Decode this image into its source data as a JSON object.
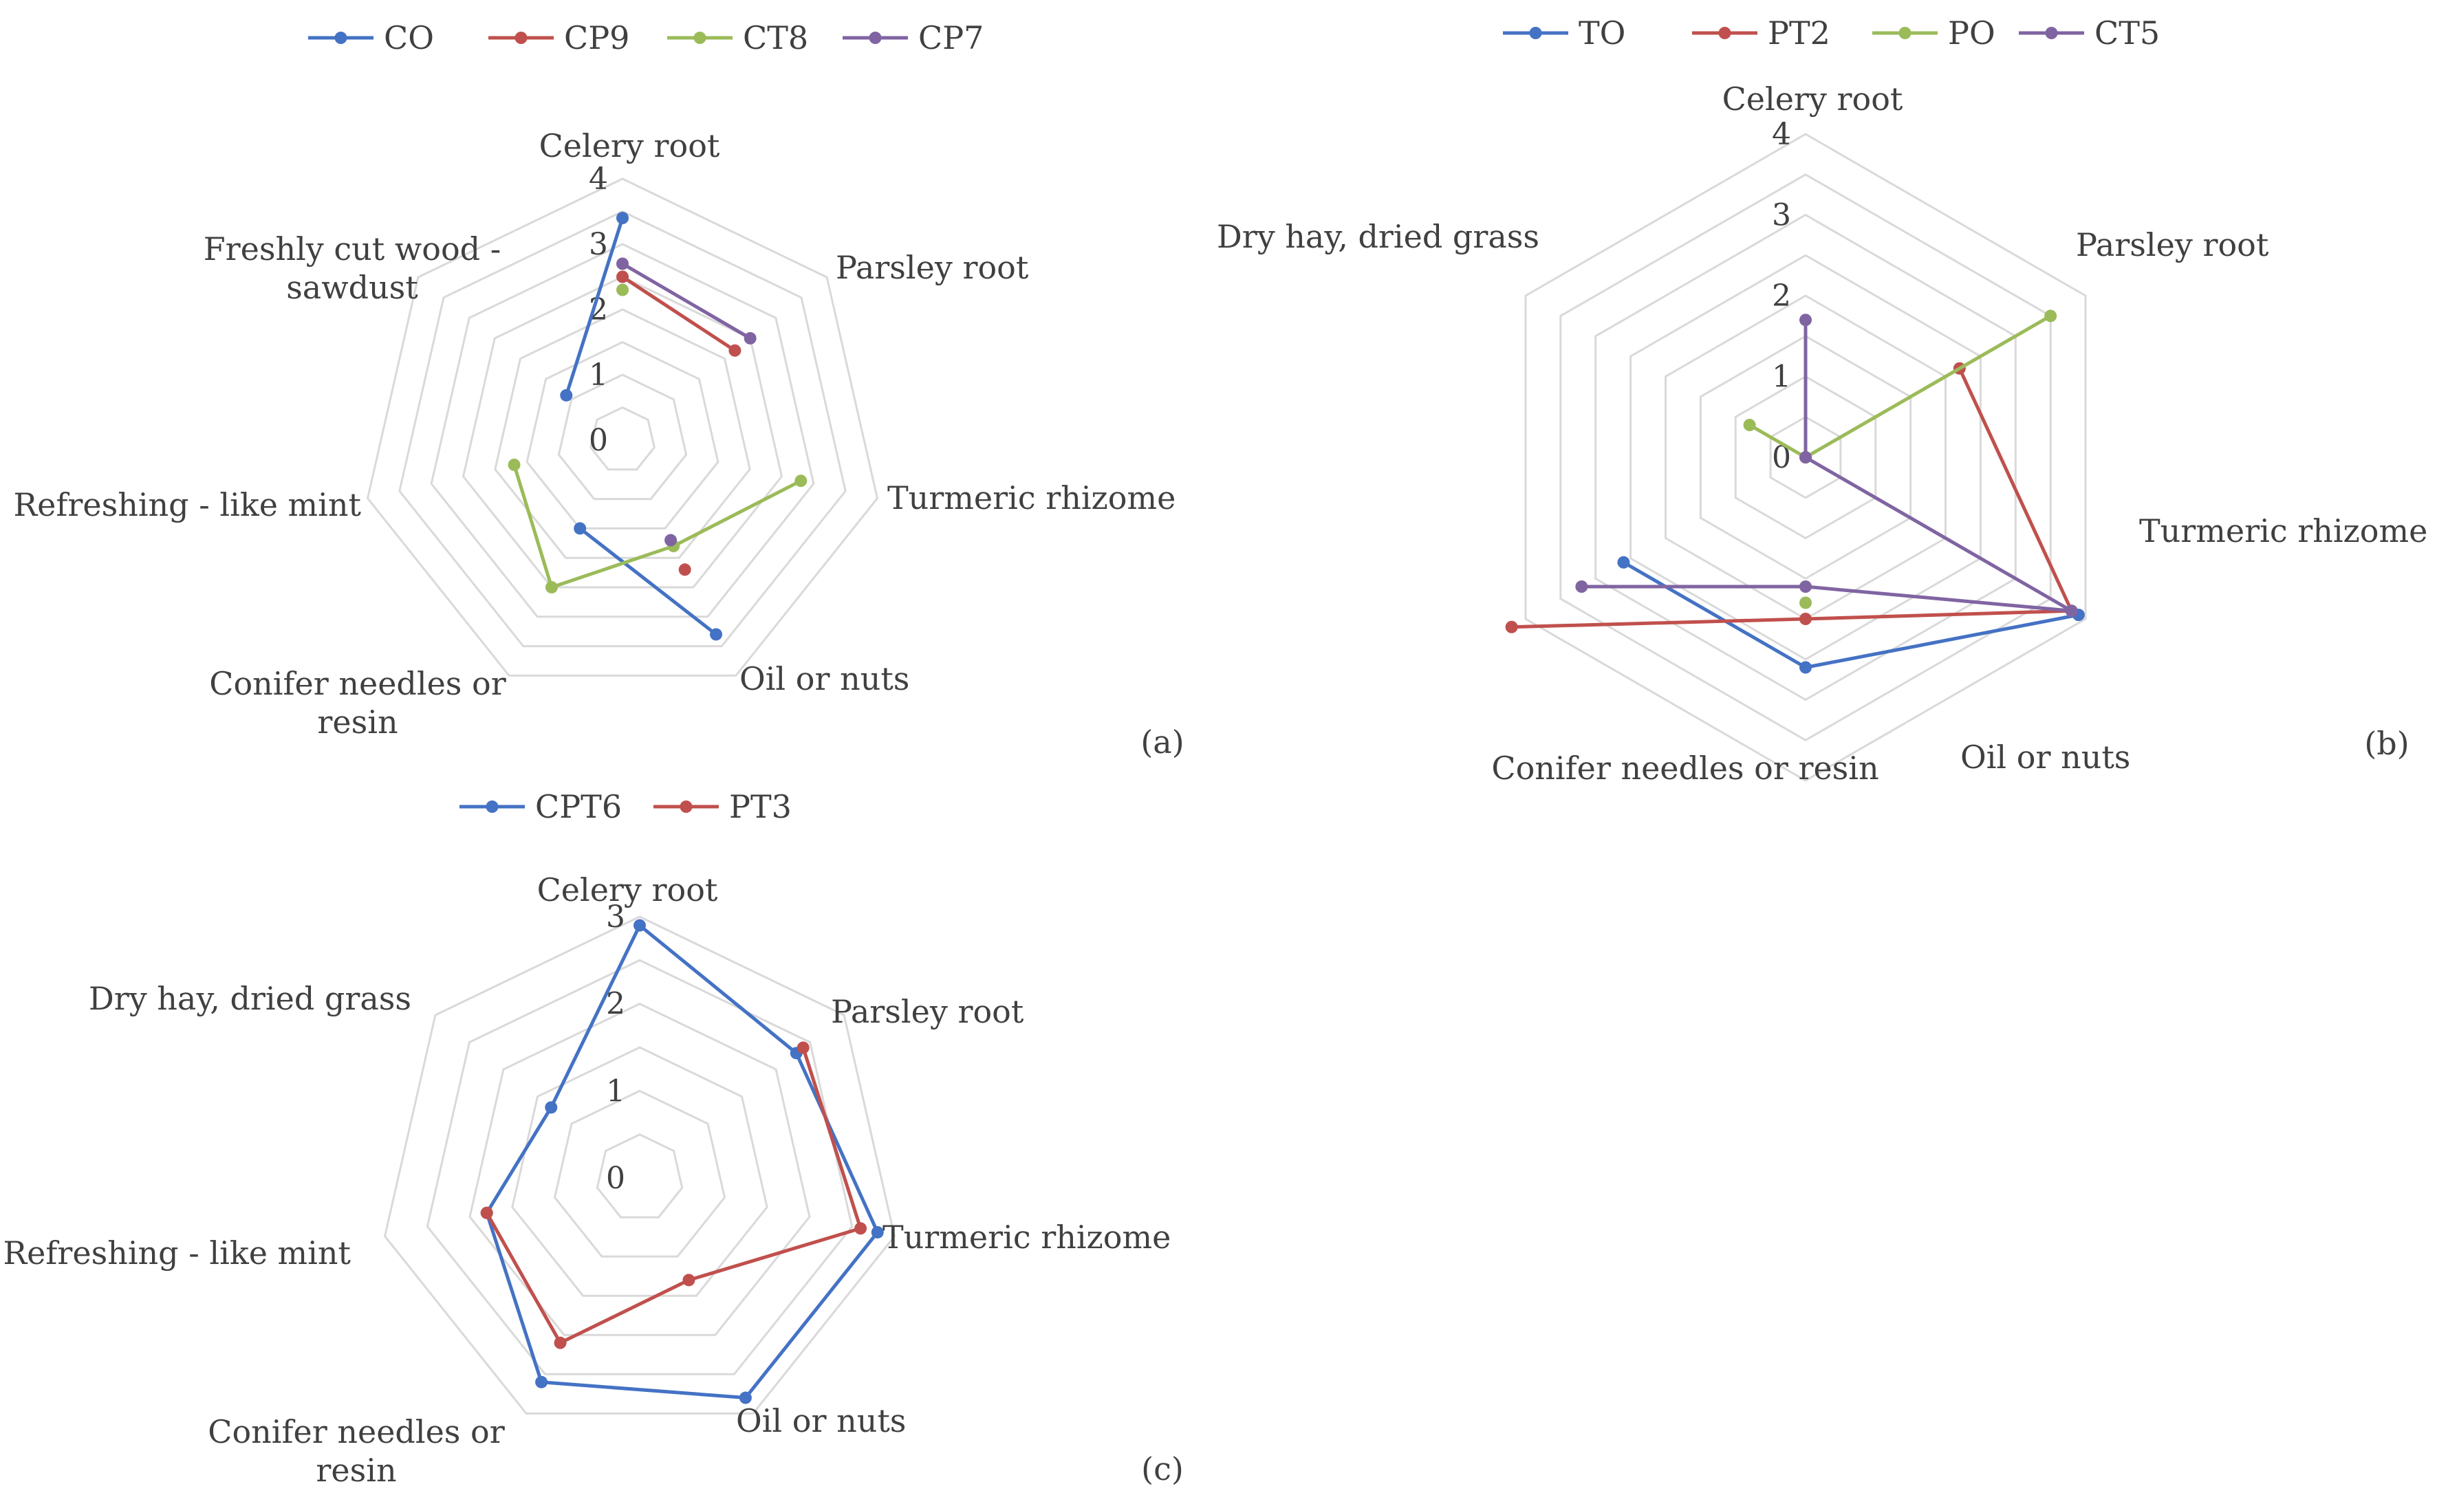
{
  "chart_data": [
    {
      "type": "radar",
      "panel_label": "(a)",
      "categories": [
        "Celery root",
        "Parsley root",
        "Turmeric rhizome",
        "Oil or nuts",
        "Conifer needles or resin",
        "Refreshing - like mint",
        "Freshly cut wood - sawdust"
      ],
      "category_lines": [
        [
          "Celery root"
        ],
        [
          "Parsley root"
        ],
        [
          "Turmeric rhizome"
        ],
        [
          "Oil or nuts"
        ],
        [
          "Conifer needles or",
          "resin"
        ],
        [
          "Refreshing - like mint"
        ],
        [
          "Freshly cut wood -",
          "sawdust"
        ]
      ],
      "ticks": [
        "0",
        "1",
        "2",
        "3",
        "4"
      ],
      "range": [
        0,
        4
      ],
      "grid_levels": 8,
      "legend": [
        "CO",
        "CP9",
        "CT8",
        "CP7"
      ],
      "series": [
        {
          "name": "CO",
          "color": "#4472C4",
          "values": [
            3.4,
            null,
            null,
            3.3,
            1.5,
            null,
            1.1
          ]
        },
        {
          "name": "CP9",
          "color": "#C0504D",
          "values": [
            2.5,
            2.2,
            null,
            2.2,
            null,
            null,
            null
          ]
        },
        {
          "name": "CT8",
          "color": "#9BBB59",
          "values": [
            2.3,
            null,
            2.8,
            1.8,
            2.5,
            1.7,
            null
          ]
        },
        {
          "name": "CP7",
          "color": "#8064A2",
          "values": [
            2.7,
            2.5,
            null,
            1.7,
            null,
            null,
            null
          ]
        }
      ]
    },
    {
      "type": "radar",
      "panel_label": "(b)",
      "categories": [
        "Celery root",
        "Parsley root",
        "Turmeric rhizome",
        "Oil or nuts",
        "Conifer needles or resin",
        "Dry hay, dried grass"
      ],
      "category_lines": [
        [
          "Celery root"
        ],
        [
          "Parsley root"
        ],
        [
          "Turmeric rhizome"
        ],
        [
          "Oil or nuts"
        ],
        [
          "Conifer needles or resin"
        ],
        [
          "Dry hay, dried grass"
        ]
      ],
      "ticks": [
        "0",
        "1",
        "2",
        "3",
        "4"
      ],
      "range": [
        0,
        4
      ],
      "grid_levels": 8,
      "legend": [
        "TO",
        "PT2",
        "PO",
        "CT5"
      ],
      "series": [
        {
          "name": "TO",
          "color": "#4472C4",
          "values": [
            null,
            null,
            3.9,
            2.6,
            2.6,
            null
          ]
        },
        {
          "name": "PT2",
          "color": "#C0504D",
          "values": [
            null,
            2.2,
            3.8,
            2.0,
            4.2,
            null
          ]
        },
        {
          "name": "PO",
          "color": "#9BBB59",
          "values": [
            0,
            3.5,
            null,
            1.8,
            null,
            0.8
          ]
        },
        {
          "name": "CT5",
          "color": "#8064A2",
          "values": [
            1.7,
            0,
            3.8,
            1.6,
            3.2,
            null
          ]
        }
      ]
    },
    {
      "type": "radar",
      "panel_label": "(c)",
      "categories": [
        "Celery root",
        "Parsley root",
        "Turmeric rhizome",
        "Oil or nuts",
        "Conifer needles or resin",
        "Refreshing - like mint",
        "Dry hay, dried grass"
      ],
      "category_lines": [
        [
          "Celery root"
        ],
        [
          "Parsley root"
        ],
        [
          "Turmeric rhizome"
        ],
        [
          "Oil or nuts"
        ],
        [
          "Conifer needles or",
          "resin"
        ],
        [
          "Refreshing - like mint"
        ],
        [
          "Dry hay, dried grass"
        ]
      ],
      "ticks": [
        "0",
        "1",
        "2",
        "3"
      ],
      "range": [
        0,
        3
      ],
      "grid_levels": 6,
      "legend": [
        "CPT6",
        "PT3"
      ],
      "series": [
        {
          "name": "CPT6",
          "color": "#4472C4",
          "values": [
            2.9,
            2.3,
            2.8,
            2.8,
            2.6,
            1.8,
            1.3
          ]
        },
        {
          "name": "PT3",
          "color": "#C0504D",
          "values": [
            null,
            2.4,
            2.6,
            1.3,
            2.1,
            1.8,
            null
          ]
        }
      ]
    }
  ]
}
